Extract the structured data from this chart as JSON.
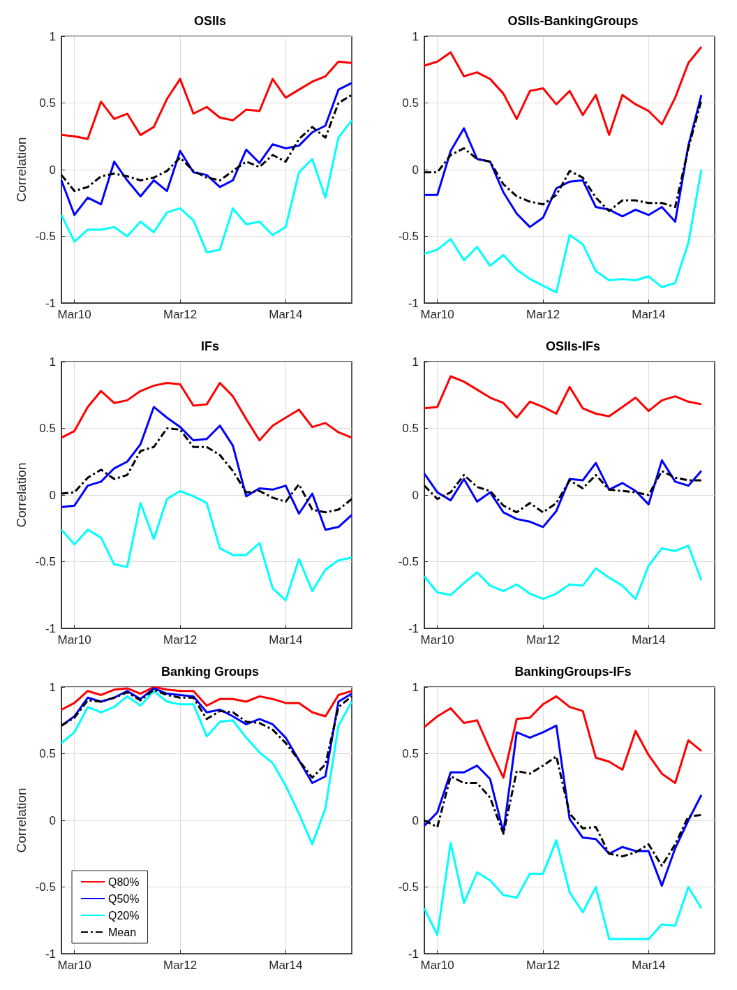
{
  "chart_data": [
    {
      "type": "line",
      "title": "OSIIs",
      "ylabel": "Correlation",
      "x": [
        "2009-12",
        "2010-03",
        "2010-06",
        "2010-09",
        "2010-12",
        "2011-03",
        "2011-06",
        "2011-09",
        "2011-12",
        "2012-03",
        "2012-06",
        "2012-09",
        "2012-12",
        "2013-03",
        "2013-06",
        "2013-09",
        "2013-12",
        "2014-03",
        "2014-06",
        "2014-09",
        "2014-12",
        "2015-03",
        "2015-06"
      ],
      "xlim": [
        "2009-12",
        "2015-06"
      ],
      "xticks": [
        {
          "value": "2010-03",
          "label": "Mar10"
        },
        {
          "value": "2012-03",
          "label": "Mar12"
        },
        {
          "value": "2014-03",
          "label": "Mar14"
        }
      ],
      "ylim": [
        -1,
        1
      ],
      "yticks": [
        -1,
        -0.5,
        0,
        0.5,
        1
      ],
      "grid": true,
      "legend": false,
      "series": [
        {
          "color": "#ff0000",
          "values": [
            0.26,
            0.25,
            0.23,
            0.51,
            0.38,
            0.42,
            0.26,
            0.32,
            0.53,
            0.68,
            0.42,
            0.47,
            0.39,
            0.37,
            0.45,
            0.44,
            0.68,
            0.54,
            0.6,
            0.66,
            0.7,
            0.81,
            0.8
          ]
        },
        {
          "color": "#0000ff",
          "values": [
            -0.08,
            -0.34,
            -0.21,
            -0.26,
            0.06,
            -0.08,
            -0.2,
            -0.08,
            -0.16,
            0.14,
            -0.02,
            -0.04,
            -0.13,
            -0.08,
            0.15,
            0.05,
            0.19,
            0.16,
            0.18,
            0.28,
            0.33,
            0.6,
            0.65
          ]
        },
        {
          "color": "#00ffff",
          "values": [
            -0.34,
            -0.54,
            -0.45,
            -0.45,
            -0.43,
            -0.5,
            -0.39,
            -0.47,
            -0.32,
            -0.29,
            -0.38,
            -0.62,
            -0.6,
            -0.29,
            -0.41,
            -0.39,
            -0.49,
            -0.43,
            -0.02,
            0.08,
            -0.21,
            0.24,
            0.37
          ]
        },
        {
          "color": "#000000",
          "line_style": "dashed",
          "values": [
            -0.04,
            -0.16,
            -0.13,
            -0.05,
            -0.03,
            -0.05,
            -0.08,
            -0.06,
            -0.01,
            0.09,
            -0.01,
            -0.06,
            -0.08,
            -0.01,
            0.06,
            0.02,
            0.11,
            0.06,
            0.23,
            0.32,
            0.24,
            0.5,
            0.56
          ]
        }
      ]
    },
    {
      "type": "line",
      "title": "OSIIs-BankingGroups",
      "x": [
        "2009-12",
        "2010-03",
        "2010-06",
        "2010-09",
        "2010-12",
        "2011-03",
        "2011-06",
        "2011-09",
        "2011-12",
        "2012-03",
        "2012-06",
        "2012-09",
        "2012-12",
        "2013-03",
        "2013-06",
        "2013-09",
        "2013-12",
        "2014-03",
        "2014-06",
        "2014-09",
        "2014-12",
        "2015-03"
      ],
      "xlim": [
        "2009-12",
        "2015-06"
      ],
      "xticks": [
        {
          "value": "2010-03",
          "label": "Mar10"
        },
        {
          "value": "2012-03",
          "label": "Mar12"
        },
        {
          "value": "2014-03",
          "label": "Mar14"
        }
      ],
      "ylim": [
        -1,
        1
      ],
      "yticks": [
        -1,
        -0.5,
        0,
        0.5,
        1
      ],
      "grid": true,
      "legend": false,
      "series": [
        {
          "color": "#ff0000",
          "values": [
            0.78,
            0.81,
            0.88,
            0.7,
            0.73,
            0.68,
            0.57,
            0.38,
            0.59,
            0.61,
            0.49,
            0.59,
            0.41,
            0.56,
            0.26,
            0.56,
            0.49,
            0.44,
            0.34,
            0.54,
            0.8,
            0.92
          ]
        },
        {
          "color": "#0000ff",
          "values": [
            -0.19,
            -0.19,
            0.14,
            0.31,
            0.08,
            0.06,
            -0.17,
            -0.33,
            -0.43,
            -0.36,
            -0.14,
            -0.09,
            -0.08,
            -0.28,
            -0.3,
            -0.35,
            -0.3,
            -0.34,
            -0.28,
            -0.39,
            0.18,
            0.56
          ]
        },
        {
          "color": "#00ffff",
          "values": [
            -0.63,
            -0.6,
            -0.52,
            -0.68,
            -0.58,
            -0.72,
            -0.64,
            -0.75,
            -0.82,
            -0.87,
            -0.92,
            -0.49,
            -0.56,
            -0.76,
            -0.83,
            -0.82,
            -0.83,
            -0.8,
            -0.88,
            -0.85,
            -0.55,
            0.0
          ]
        },
        {
          "color": "#000000",
          "line_style": "dashed",
          "values": [
            -0.02,
            -0.02,
            0.11,
            0.16,
            0.08,
            0.06,
            -0.11,
            -0.2,
            -0.24,
            -0.26,
            -0.19,
            -0.01,
            -0.06,
            -0.21,
            -0.31,
            -0.23,
            -0.23,
            -0.25,
            -0.25,
            -0.28,
            0.16,
            0.52
          ]
        }
      ]
    },
    {
      "type": "line",
      "title": "IFs",
      "ylabel": "Correlation",
      "x": [
        "2009-12",
        "2010-03",
        "2010-06",
        "2010-09",
        "2010-12",
        "2011-03",
        "2011-06",
        "2011-09",
        "2011-12",
        "2012-03",
        "2012-06",
        "2012-09",
        "2012-12",
        "2013-03",
        "2013-06",
        "2013-09",
        "2013-12",
        "2014-03",
        "2014-06",
        "2014-09",
        "2014-12",
        "2015-03",
        "2015-06"
      ],
      "xlim": [
        "2009-12",
        "2015-06"
      ],
      "xticks": [
        {
          "value": "2010-03",
          "label": "Mar10"
        },
        {
          "value": "2012-03",
          "label": "Mar12"
        },
        {
          "value": "2014-03",
          "label": "Mar14"
        }
      ],
      "ylim": [
        -1,
        1
      ],
      "yticks": [
        -1,
        -0.5,
        0,
        0.5,
        1
      ],
      "grid": true,
      "legend": false,
      "series": [
        {
          "color": "#ff0000",
          "values": [
            0.43,
            0.48,
            0.66,
            0.78,
            0.69,
            0.71,
            0.78,
            0.82,
            0.84,
            0.83,
            0.67,
            0.68,
            0.84,
            0.74,
            0.57,
            0.41,
            0.52,
            0.58,
            0.64,
            0.51,
            0.54,
            0.47,
            0.43
          ]
        },
        {
          "color": "#0000ff",
          "values": [
            -0.09,
            -0.08,
            0.07,
            0.1,
            0.2,
            0.25,
            0.38,
            0.66,
            0.58,
            0.51,
            0.41,
            0.42,
            0.52,
            0.37,
            -0.01,
            0.05,
            0.04,
            0.07,
            -0.14,
            0.01,
            -0.26,
            -0.24,
            -0.15
          ]
        },
        {
          "color": "#00ffff",
          "values": [
            -0.26,
            -0.37,
            -0.26,
            -0.32,
            -0.52,
            -0.54,
            -0.06,
            -0.33,
            -0.03,
            0.03,
            -0.01,
            -0.06,
            -0.4,
            -0.45,
            -0.45,
            -0.36,
            -0.7,
            -0.79,
            -0.48,
            -0.72,
            -0.56,
            -0.49,
            -0.47
          ]
        },
        {
          "color": "#000000",
          "line_style": "dashed",
          "values": [
            0.01,
            0.02,
            0.13,
            0.19,
            0.12,
            0.15,
            0.33,
            0.36,
            0.5,
            0.49,
            0.36,
            0.36,
            0.3,
            0.18,
            0.02,
            0.03,
            -0.02,
            -0.05,
            0.08,
            -0.11,
            -0.13,
            -0.11,
            -0.03
          ]
        }
      ]
    },
    {
      "type": "line",
      "title": "OSIIs-IFs",
      "x": [
        "2009-12",
        "2010-03",
        "2010-06",
        "2010-09",
        "2010-12",
        "2011-03",
        "2011-06",
        "2011-09",
        "2011-12",
        "2012-03",
        "2012-06",
        "2012-09",
        "2012-12",
        "2013-03",
        "2013-06",
        "2013-09",
        "2013-12",
        "2014-03",
        "2014-06",
        "2014-09",
        "2014-12",
        "2015-03"
      ],
      "xlim": [
        "2009-12",
        "2015-06"
      ],
      "xticks": [
        {
          "value": "2010-03",
          "label": "Mar10"
        },
        {
          "value": "2012-03",
          "label": "Mar12"
        },
        {
          "value": "2014-03",
          "label": "Mar14"
        }
      ],
      "ylim": [
        -1,
        1
      ],
      "yticks": [
        -1,
        -0.5,
        0,
        0.5,
        1
      ],
      "grid": true,
      "legend": false,
      "series": [
        {
          "color": "#ff0000",
          "values": [
            0.65,
            0.66,
            0.89,
            0.85,
            0.79,
            0.73,
            0.69,
            0.58,
            0.7,
            0.66,
            0.61,
            0.81,
            0.65,
            0.61,
            0.59,
            0.66,
            0.73,
            0.63,
            0.71,
            0.74,
            0.7,
            0.68
          ]
        },
        {
          "color": "#0000ff",
          "values": [
            0.16,
            0.02,
            -0.04,
            0.12,
            -0.05,
            0.02,
            -0.13,
            -0.18,
            -0.2,
            -0.24,
            -0.12,
            0.12,
            0.11,
            0.24,
            0.04,
            0.09,
            0.03,
            -0.07,
            0.26,
            0.1,
            0.07,
            0.18
          ]
        },
        {
          "color": "#00ffff",
          "values": [
            -0.61,
            -0.73,
            -0.75,
            -0.66,
            -0.58,
            -0.68,
            -0.72,
            -0.67,
            -0.74,
            -0.78,
            -0.74,
            -0.67,
            -0.68,
            -0.55,
            -0.62,
            -0.68,
            -0.78,
            -0.53,
            -0.4,
            -0.42,
            -0.38,
            -0.64
          ]
        },
        {
          "color": "#000000",
          "line_style": "dashed",
          "values": [
            0.07,
            -0.03,
            0.02,
            0.15,
            0.06,
            0.03,
            -0.08,
            -0.13,
            -0.06,
            -0.13,
            -0.06,
            0.11,
            0.05,
            0.15,
            0.04,
            0.03,
            0.02,
            0.0,
            0.18,
            0.13,
            0.11,
            0.11
          ]
        }
      ]
    },
    {
      "type": "line",
      "title": "Banking Groups",
      "ylabel": "Correlation",
      "x": [
        "2009-12",
        "2010-03",
        "2010-06",
        "2010-09",
        "2010-12",
        "2011-03",
        "2011-06",
        "2011-09",
        "2011-12",
        "2012-03",
        "2012-06",
        "2012-09",
        "2012-12",
        "2013-03",
        "2013-06",
        "2013-09",
        "2013-12",
        "2014-03",
        "2014-06",
        "2014-09",
        "2014-12",
        "2015-03",
        "2015-06"
      ],
      "xlim": [
        "2009-12",
        "2015-06"
      ],
      "xticks": [
        {
          "value": "2010-03",
          "label": "Mar10"
        },
        {
          "value": "2012-03",
          "label": "Mar12"
        },
        {
          "value": "2014-03",
          "label": "Mar14"
        }
      ],
      "ylim": [
        -1,
        1
      ],
      "yticks": [
        -1,
        -0.5,
        0,
        0.5,
        1
      ],
      "grid": true,
      "legend": "bottom left",
      "series": [
        {
          "name": "Q80%",
          "color": "#ff0000",
          "values": [
            0.83,
            0.88,
            0.97,
            0.94,
            0.98,
            0.99,
            0.95,
            1.0,
            0.98,
            0.97,
            0.97,
            0.86,
            0.91,
            0.91,
            0.89,
            0.93,
            0.91,
            0.88,
            0.88,
            0.81,
            0.78,
            0.94,
            0.97
          ]
        },
        {
          "name": "Q50%",
          "color": "#0000ff",
          "values": [
            0.71,
            0.78,
            0.92,
            0.89,
            0.92,
            0.97,
            0.91,
            0.99,
            0.95,
            0.94,
            0.93,
            0.81,
            0.83,
            0.78,
            0.72,
            0.76,
            0.72,
            0.62,
            0.45,
            0.28,
            0.33,
            0.89,
            0.95
          ]
        },
        {
          "name": "Q20%",
          "color": "#00ffff",
          "values": [
            0.58,
            0.66,
            0.85,
            0.81,
            0.85,
            0.93,
            0.86,
            0.97,
            0.89,
            0.87,
            0.87,
            0.63,
            0.74,
            0.75,
            0.62,
            0.51,
            0.43,
            0.26,
            0.05,
            -0.18,
            0.09,
            0.71,
            0.89
          ]
        },
        {
          "name": "Mean",
          "color": "#000000",
          "line_style": "dashed",
          "values": [
            0.71,
            0.77,
            0.9,
            0.89,
            0.92,
            0.96,
            0.9,
            0.98,
            0.94,
            0.92,
            0.92,
            0.76,
            0.82,
            0.81,
            0.74,
            0.73,
            0.68,
            0.58,
            0.45,
            0.32,
            0.42,
            0.85,
            0.93
          ]
        }
      ]
    },
    {
      "type": "line",
      "title": "BankingGroups-IFs",
      "x": [
        "2009-12",
        "2010-03",
        "2010-06",
        "2010-09",
        "2010-12",
        "2011-03",
        "2011-06",
        "2011-09",
        "2011-12",
        "2012-03",
        "2012-06",
        "2012-09",
        "2012-12",
        "2013-03",
        "2013-06",
        "2013-09",
        "2013-12",
        "2014-03",
        "2014-06",
        "2014-09",
        "2014-12",
        "2015-03"
      ],
      "xlim": [
        "2009-12",
        "2015-06"
      ],
      "xticks": [
        {
          "value": "2010-03",
          "label": "Mar10"
        },
        {
          "value": "2012-03",
          "label": "Mar12"
        },
        {
          "value": "2014-03",
          "label": "Mar14"
        }
      ],
      "ylim": [
        -1,
        1
      ],
      "yticks": [
        -1,
        -0.5,
        0,
        0.5,
        1
      ],
      "grid": true,
      "legend": false,
      "series": [
        {
          "color": "#ff0000",
          "values": [
            0.7,
            0.78,
            0.84,
            0.73,
            0.75,
            0.53,
            0.32,
            0.76,
            0.77,
            0.87,
            0.93,
            0.85,
            0.82,
            0.47,
            0.44,
            0.38,
            0.67,
            0.49,
            0.35,
            0.28,
            0.6,
            0.52
          ]
        },
        {
          "color": "#0000ff",
          "values": [
            -0.04,
            0.06,
            0.36,
            0.36,
            0.41,
            0.31,
            -0.09,
            0.66,
            0.62,
            0.66,
            0.71,
            0.01,
            -0.13,
            -0.14,
            -0.25,
            -0.2,
            -0.23,
            -0.23,
            -0.49,
            -0.21,
            0.0,
            0.19
          ]
        },
        {
          "color": "#00ffff",
          "values": [
            -0.66,
            -0.86,
            -0.17,
            -0.62,
            -0.39,
            -0.45,
            -0.56,
            -0.58,
            -0.4,
            -0.4,
            -0.15,
            -0.54,
            -0.69,
            -0.5,
            -0.89,
            -0.89,
            -0.89,
            -0.89,
            -0.78,
            -0.79,
            -0.5,
            -0.66
          ]
        },
        {
          "color": "#000000",
          "line_style": "dashed",
          "values": [
            0.0,
            -0.05,
            0.33,
            0.28,
            0.28,
            0.17,
            -0.1,
            0.37,
            0.35,
            0.41,
            0.48,
            0.05,
            -0.06,
            -0.05,
            -0.25,
            -0.27,
            -0.24,
            -0.18,
            -0.34,
            -0.18,
            0.03,
            0.04
          ]
        }
      ]
    }
  ]
}
